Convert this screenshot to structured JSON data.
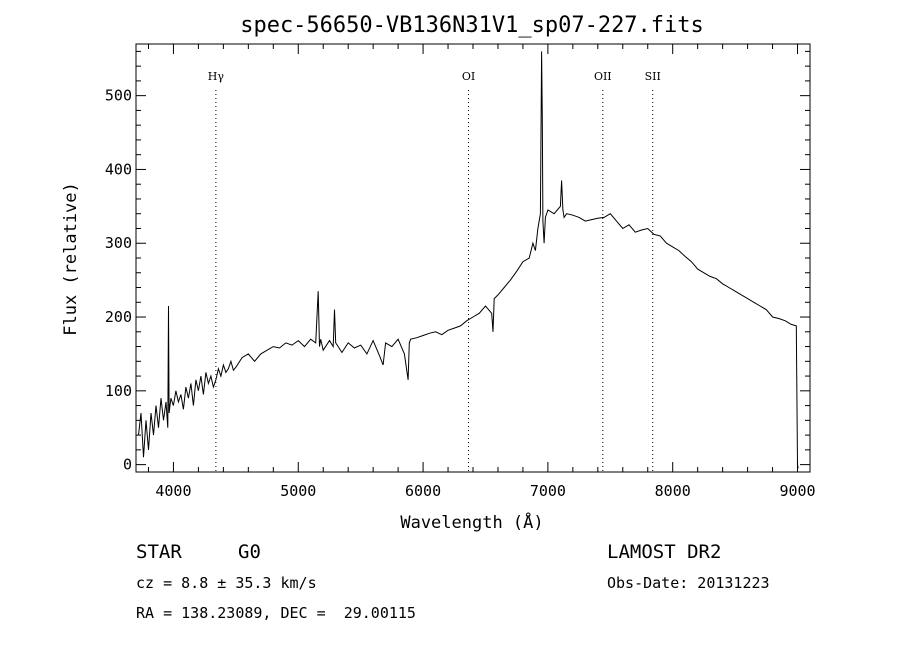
{
  "chart_data": {
    "type": "line",
    "title": "spec-56650-VB136N31V1_sp07-227.fits",
    "xlabel": "Wavelength (Å)",
    "ylabel": "Flux (relative)",
    "xlim": [
      3700,
      9100
    ],
    "ylim": [
      -10,
      570
    ],
    "xticks": [
      4000,
      5000,
      6000,
      7000,
      8000,
      9000
    ],
    "yticks": [
      0,
      100,
      200,
      300,
      400,
      500
    ],
    "grid": false,
    "line_color": "#000000",
    "lines": [
      {
        "label": "Hγ",
        "x": 4340
      },
      {
        "label": "OI",
        "x": 6364
      },
      {
        "label": "OII",
        "x": 7440
      },
      {
        "label": "SII",
        "x": 7840
      }
    ],
    "series": [
      {
        "x": [
          3720,
          3740,
          3760,
          3780,
          3800,
          3820,
          3840,
          3860,
          3880,
          3900,
          3920,
          3940,
          3955,
          3960,
          3965,
          3980,
          4000,
          4020,
          4040,
          4060,
          4080,
          4100,
          4120,
          4140,
          4160,
          4180,
          4200,
          4220,
          4240,
          4260,
          4280,
          4300,
          4320,
          4340,
          4360,
          4380,
          4400,
          4420,
          4440,
          4460,
          4480,
          4500,
          4550,
          4600,
          4650,
          4700,
          4750,
          4800,
          4850,
          4900,
          4950,
          5000,
          5050,
          5100,
          5140,
          5160,
          5170,
          5180,
          5200,
          5250,
          5280,
          5290,
          5300,
          5320,
          5350,
          5400,
          5450,
          5500,
          5550,
          5600,
          5650,
          5680,
          5700,
          5750,
          5800,
          5850,
          5880,
          5890,
          5900,
          5950,
          6000,
          6050,
          6100,
          6150,
          6200,
          6250,
          6300,
          6350,
          6400,
          6450,
          6500,
          6550,
          6560,
          6570,
          6600,
          6650,
          6700,
          6750,
          6800,
          6850,
          6880,
          6900,
          6920,
          6940,
          6950,
          6955,
          6960,
          6970,
          6980,
          7000,
          7050,
          7100,
          7110,
          7120,
          7130,
          7150,
          7200,
          7250,
          7300,
          7350,
          7400,
          7450,
          7500,
          7550,
          7600,
          7650,
          7700,
          7750,
          7800,
          7850,
          7900,
          7950,
          8000,
          8050,
          8100,
          8150,
          8200,
          8250,
          8300,
          8350,
          8400,
          8450,
          8500,
          8550,
          8600,
          8650,
          8700,
          8750,
          8800,
          8850,
          8900,
          8950,
          8990,
          9000,
          9005
        ],
        "values": [
          40,
          70,
          10,
          60,
          20,
          70,
          40,
          80,
          50,
          90,
          60,
          85,
          50,
          215,
          70,
          90,
          80,
          100,
          85,
          95,
          75,
          105,
          90,
          110,
          80,
          115,
          100,
          120,
          95,
          125,
          110,
          120,
          105,
          115,
          130,
          120,
          135,
          125,
          130,
          140,
          128,
          132,
          145,
          150,
          140,
          150,
          155,
          160,
          158,
          165,
          162,
          168,
          160,
          170,
          165,
          235,
          160,
          170,
          155,
          168,
          160,
          210,
          165,
          160,
          152,
          165,
          158,
          162,
          150,
          168,
          148,
          135,
          165,
          160,
          170,
          150,
          115,
          165,
          170,
          172,
          175,
          178,
          180,
          176,
          182,
          185,
          188,
          195,
          200,
          205,
          215,
          205,
          180,
          225,
          230,
          240,
          250,
          262,
          275,
          280,
          300,
          290,
          320,
          340,
          560,
          470,
          330,
          300,
          335,
          345,
          340,
          350,
          385,
          345,
          335,
          340,
          338,
          335,
          330,
          332,
          334,
          335,
          340,
          330,
          320,
          325,
          315,
          318,
          320,
          312,
          310,
          300,
          295,
          290,
          282,
          275,
          265,
          260,
          255,
          252,
          245,
          240,
          235,
          230,
          225,
          220,
          215,
          210,
          200,
          198,
          195,
          190,
          188,
          0,
          -5
        ]
      }
    ]
  },
  "info": {
    "object_class": "STAR",
    "subclass": "G0",
    "survey": "LAMOST DR2",
    "redshift": "cz = 8.8 ± 35.3 km/s",
    "obs_date": "Obs-Date: 20131223",
    "coords": "RA = 138.23089, DEC =  29.00115"
  }
}
